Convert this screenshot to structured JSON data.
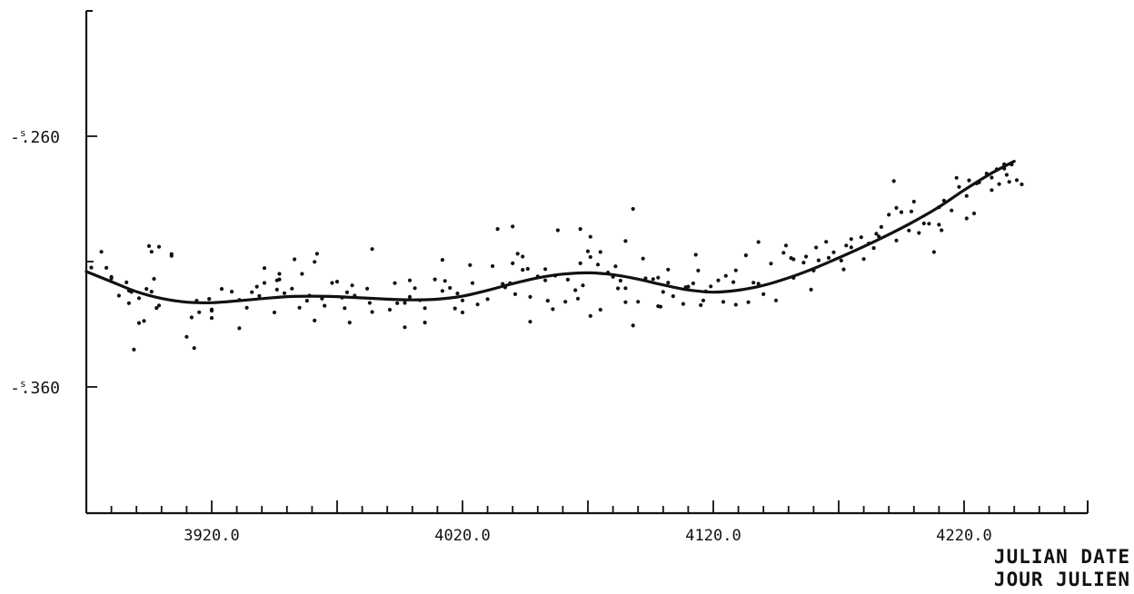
{
  "chart_data": {
    "type": "scatter",
    "title": "",
    "xlabel_lines": [
      "JULIAN DATE",
      "JOUR JULIEN"
    ],
    "ylabel": "",
    "xlim": [
      3870,
      4270
    ],
    "ylim": [
      -0.41,
      -0.21
    ],
    "x_ticks": [
      3920,
      4020,
      4120,
      4220
    ],
    "x_tick_labels": [
      "3920.0",
      "4020.0",
      "4120.0",
      "4220.0"
    ],
    "y_ticks": [
      -0.26,
      -0.36
    ],
    "y_tick_labels": [
      {
        "prefix": "-",
        "sup": "s",
        "text": ".260"
      },
      {
        "prefix": "-",
        "sup": "s",
        "text": ".360"
      }
    ],
    "x_minor_step": 10,
    "grid": false,
    "colors": {
      "points": "#111111",
      "curve": "#111111",
      "axes": "#111111"
    },
    "series": [
      {
        "kind": "points",
        "points": [
          [
            3872.0,
            -0.3124
          ],
          [
            3876.0,
            -0.3061
          ],
          [
            3878.0,
            -0.3125
          ],
          [
            3880.0,
            -0.3167
          ],
          [
            3880.0,
            -0.3161
          ],
          [
            3883.0,
            -0.3236
          ],
          [
            3887.0,
            -0.3266
          ],
          [
            3886.0,
            -0.3183
          ],
          [
            3887.0,
            -0.3216
          ],
          [
            3888.0,
            -0.3221
          ],
          [
            3891.0,
            -0.3246
          ],
          [
            3893.0,
            -0.3337
          ],
          [
            3894.0,
            -0.3209
          ],
          [
            3896.0,
            -0.322
          ],
          [
            3899.0,
            -0.3275
          ],
          [
            3897.0,
            -0.3169
          ],
          [
            3896.0,
            -0.3061
          ],
          [
            3899.0,
            -0.3041
          ],
          [
            3895.0,
            -0.3038
          ],
          [
            3904.0,
            -0.307
          ],
          [
            3904.0,
            -0.3077
          ],
          [
            3913.0,
            -0.3445
          ],
          [
            3915.0,
            -0.3302
          ],
          [
            3914.0,
            -0.3256
          ],
          [
            3919.0,
            -0.3249
          ],
          [
            3924.0,
            -0.3209
          ],
          [
            3920.0,
            -0.3291
          ],
          [
            3920.0,
            -0.3296
          ],
          [
            3928.0,
            -0.322
          ],
          [
            3931.0,
            -0.3253
          ],
          [
            3936.0,
            -0.3222
          ],
          [
            3938.0,
            -0.32
          ],
          [
            3939.0,
            -0.3237
          ],
          [
            3941.0,
            -0.3185
          ],
          [
            3941.0,
            -0.3126
          ],
          [
            3946.0,
            -0.3175
          ],
          [
            3947.0,
            -0.3149
          ],
          [
            3947.0,
            -0.3171
          ],
          [
            3952.0,
            -0.3208
          ],
          [
            3949.0,
            -0.3226
          ],
          [
            3953.0,
            -0.3091
          ],
          [
            3958.0,
            -0.3256
          ],
          [
            3959.0,
            -0.3236
          ],
          [
            3956.0,
            -0.3149
          ],
          [
            3961.0,
            -0.3101
          ],
          [
            3962.0,
            -0.3069
          ],
          [
            3964.0,
            -0.3248
          ],
          [
            3961.0,
            -0.3335
          ],
          [
            3965.0,
            -0.3276
          ],
          [
            3968.0,
            -0.3185
          ],
          [
            3973.0,
            -0.3286
          ],
          [
            3972.0,
            -0.3244
          ],
          [
            3974.0,
            -0.3223
          ],
          [
            3976.0,
            -0.3195
          ],
          [
            3977.0,
            -0.3236
          ],
          [
            3984.0,
            -0.305
          ],
          [
            3983.0,
            -0.3265
          ],
          [
            3991.0,
            -0.3292
          ],
          [
            3994.0,
            -0.3266
          ],
          [
            3997.0,
            -0.3265
          ],
          [
            3999.0,
            -0.3241
          ],
          [
            3999.0,
            -0.3175
          ],
          [
            4003.0,
            -0.3254
          ],
          [
            4005.0,
            -0.3286
          ],
          [
            4009.0,
            -0.3171
          ],
          [
            4012.0,
            -0.3093
          ],
          [
            4013.0,
            -0.3177
          ],
          [
            4012.0,
            -0.3217
          ],
          [
            4017.0,
            -0.3287
          ],
          [
            4018.0,
            -0.3227
          ],
          [
            4020.0,
            -0.3255
          ],
          [
            4024.0,
            -0.3186
          ],
          [
            4030.0,
            -0.325
          ],
          [
            4032.0,
            -0.3118
          ],
          [
            4036.0,
            -0.3189
          ],
          [
            4037.0,
            -0.3203
          ],
          [
            4039.0,
            -0.3186
          ],
          [
            4041.0,
            -0.323
          ],
          [
            4042.0,
            -0.3069
          ],
          [
            4044.0,
            -0.308
          ],
          [
            4046.0,
            -0.3129
          ],
          [
            4047.0,
            -0.3241
          ],
          [
            4050.0,
            -0.3159
          ],
          [
            4053.0,
            -0.313
          ],
          [
            4057.0,
            -0.3156
          ],
          [
            4062.0,
            -0.3172
          ],
          [
            4065.0,
            -0.3214
          ],
          [
            4066.0,
            -0.3248
          ],
          [
            4068.0,
            -0.3195
          ],
          [
            4067.0,
            -0.3107
          ],
          [
            4067.0,
            -0.297
          ],
          [
            4070.0,
            -0.3059
          ],
          [
            4071.0,
            -0.3082
          ],
          [
            4074.0,
            -0.3112
          ],
          [
            4075.0,
            -0.3062
          ],
          [
            4078.0,
            -0.3144
          ],
          [
            4080.0,
            -0.3161
          ],
          [
            4083.0,
            -0.3176
          ],
          [
            4082.0,
            -0.3207
          ],
          [
            4081.0,
            -0.3119
          ],
          [
            4085.0,
            -0.3206
          ],
          [
            4085.0,
            -0.3262
          ],
          [
            4090.0,
            -0.326
          ],
          [
            4093.0,
            -0.3167
          ],
          [
            4092.0,
            -0.3088
          ],
          [
            4096.0,
            -0.317
          ],
          [
            4098.0,
            -0.3164
          ],
          [
            4100.0,
            -0.3221
          ],
          [
            4102.0,
            -0.3184
          ],
          [
            4102.0,
            -0.3132
          ],
          [
            4104.0,
            -0.3238
          ],
          [
            4109.0,
            -0.3202
          ],
          [
            4110.0,
            -0.32
          ],
          [
            4112.0,
            -0.3187
          ],
          [
            4113.0,
            -0.3073
          ],
          [
            4114.0,
            -0.3136
          ],
          [
            4117.0,
            -0.3219
          ],
          [
            4119.0,
            -0.3199
          ],
          [
            4122.0,
            -0.3175
          ],
          [
            4125.0,
            -0.3157
          ],
          [
            4128.0,
            -0.3182
          ],
          [
            4129.0,
            -0.3135
          ],
          [
            4133.0,
            -0.3075
          ],
          [
            4136.0,
            -0.3184
          ],
          [
            4138.0,
            -0.3188
          ],
          [
            4140.0,
            -0.323
          ],
          [
            4143.0,
            -0.3108
          ],
          [
            4148.0,
            -0.3065
          ],
          [
            4151.0,
            -0.3086
          ],
          [
            4152.0,
            -0.3091
          ],
          [
            4156.0,
            -0.3104
          ],
          [
            4157.0,
            -0.308
          ],
          [
            4160.0,
            -0.3136
          ],
          [
            4162.0,
            -0.3095
          ],
          [
            4166.0,
            -0.3085
          ],
          [
            4168.0,
            -0.3063
          ],
          [
            4171.0,
            -0.3096
          ],
          [
            4173.0,
            -0.3036
          ],
          [
            4175.0,
            -0.301
          ],
          [
            4179.0,
            -0.3003
          ],
          [
            4182.0,
            -0.3028
          ],
          [
            4185.0,
            -0.2989
          ],
          [
            4187.0,
            -0.2962
          ],
          [
            4190.0,
            -0.2913
          ],
          [
            4193.0,
            -0.2886
          ],
          [
            4195.0,
            -0.2903
          ],
          [
            4199.0,
            -0.29
          ],
          [
            4200.0,
            -0.2861
          ],
          [
            4204.0,
            -0.2948
          ],
          [
            4206.0,
            -0.2949
          ],
          [
            4210.0,
            -0.2883
          ],
          [
            4212.0,
            -0.2857
          ],
          [
            4215.0,
            -0.2896
          ],
          [
            4217.0,
            -0.2766
          ],
          [
            4218.0,
            -0.2802
          ],
          [
            4221.0,
            -0.2838
          ],
          [
            4222.0,
            -0.2776
          ],
          [
            4226.0,
            -0.2784
          ],
          [
            4229.0,
            -0.2749
          ],
          [
            4231.0,
            -0.2765
          ],
          [
            4233.0,
            -0.2732
          ],
          [
            4236.0,
            -0.2729
          ],
          [
            4236.0,
            -0.2712
          ],
          [
            4238.0,
            -0.2782
          ],
          [
            4241.0,
            -0.2775
          ],
          [
            4237.0,
            -0.2754
          ],
          [
            4234.0,
            -0.2791
          ],
          [
            4236.0,
            -0.2714
          ],
          [
            4239.0,
            -0.2713
          ],
          [
            4208.0,
            -0.3062
          ],
          [
            4202.0,
            -0.2986
          ],
          [
            4192.0,
            -0.2779
          ],
          [
            4184.0,
            -0.3046
          ],
          [
            4165.0,
            -0.3021
          ],
          [
            4152.0,
            -0.3165
          ],
          [
            4134.0,
            -0.3262
          ],
          [
            4124.0,
            -0.3261
          ],
          [
            4116.0,
            -0.3255
          ],
          [
            4099.0,
            -0.328
          ],
          [
            4088.0,
            -0.3355
          ],
          [
            4088.0,
            -0.289
          ],
          [
            4056.0,
            -0.329
          ],
          [
            4047.0,
            -0.334
          ],
          [
            4054.0,
            -0.3256
          ],
          [
            4040.0,
            -0.296
          ],
          [
            4026.0,
            -0.3271
          ],
          [
            4020.0,
            -0.3303
          ],
          [
            4005.0,
            -0.3343
          ],
          [
            3997.0,
            -0.3362
          ],
          [
            3984.0,
            -0.3301
          ],
          [
            3975.0,
            -0.3343
          ],
          [
            3955.0,
            -0.3284
          ],
          [
            3945.0,
            -0.3303
          ],
          [
            3931.0,
            -0.3366
          ],
          [
            3912.0,
            -0.3323
          ],
          [
            3891.0,
            -0.3345
          ],
          [
            3889.0,
            -0.3451
          ],
          [
            3898.0,
            -0.3285
          ],
          [
            4040.0,
            -0.3107
          ],
          [
            4044.0,
            -0.3133
          ],
          [
            4053.0,
            -0.3175
          ],
          [
            4061.0,
            -0.326
          ],
          [
            4071.0,
            -0.3317
          ],
          [
            4075.0,
            -0.3292
          ],
          [
            4098.0,
            -0.3278
          ],
          [
            4108.0,
            -0.3269
          ],
          [
            4115.0,
            -0.3274
          ],
          [
            4129.0,
            -0.3272
          ],
          [
            4145.0,
            -0.3255
          ],
          [
            4159.0,
            -0.3212
          ],
          [
            4172.0,
            -0.3131
          ],
          [
            4180.0,
            -0.309
          ],
          [
            4193.0,
            -0.3016
          ],
          [
            4211.0,
            -0.2975
          ],
          [
            4221.0,
            -0.2928
          ],
          [
            3920.0,
            -0.3325
          ],
          [
            3934.0,
            -0.3284
          ],
          [
            3946.0,
            -0.3212
          ],
          [
            3970.0,
            -0.318
          ],
          [
            3982.0,
            -0.3208
          ],
          [
            3993.0,
            -0.3186
          ],
          [
            4001.0,
            -0.3206
          ],
          [
            4015.0,
            -0.3205
          ],
          [
            4023.0,
            -0.3114
          ],
          [
            4034.0,
            -0.297
          ],
          [
            4058.0,
            -0.2975
          ],
          [
            4071.0,
            -0.3001
          ],
          [
            4085.0,
            -0.3018
          ],
          [
            4138.0,
            -0.3022
          ],
          [
            4149.0,
            -0.3036
          ],
          [
            4161.0,
            -0.3044
          ],
          [
            4175.0,
            -0.3043
          ],
          [
            4186.0,
            -0.3
          ],
          [
            4198.0,
            -0.2976
          ],
          [
            4210.0,
            -0.2953
          ],
          [
            4224.0,
            -0.2908
          ],
          [
            4243.0,
            -0.2792
          ],
          [
            4225.0,
            -0.2788
          ],
          [
            4231.0,
            -0.2815
          ],
          [
            3910.0,
            -0.34
          ]
        ]
      },
      {
        "kind": "line",
        "points": [
          [
            3870,
            -0.314
          ],
          [
            3880,
            -0.318
          ],
          [
            3890,
            -0.322
          ],
          [
            3900,
            -0.3247
          ],
          [
            3910,
            -0.3262
          ],
          [
            3920,
            -0.3264
          ],
          [
            3930,
            -0.3257
          ],
          [
            3940,
            -0.3248
          ],
          [
            3950,
            -0.324
          ],
          [
            3960,
            -0.3238
          ],
          [
            3970,
            -0.324
          ],
          [
            3980,
            -0.3245
          ],
          [
            3990,
            -0.325
          ],
          [
            4000,
            -0.3253
          ],
          [
            4010,
            -0.325
          ],
          [
            4020,
            -0.3238
          ],
          [
            4030,
            -0.3215
          ],
          [
            4040,
            -0.3188
          ],
          [
            4050,
            -0.3165
          ],
          [
            4060,
            -0.315
          ],
          [
            4070,
            -0.3145
          ],
          [
            4080,
            -0.3152
          ],
          [
            4090,
            -0.317
          ],
          [
            4100,
            -0.3193
          ],
          [
            4110,
            -0.3213
          ],
          [
            4120,
            -0.3222
          ],
          [
            4130,
            -0.3214
          ],
          [
            4140,
            -0.3195
          ],
          [
            4150,
            -0.3165
          ],
          [
            4160,
            -0.3128
          ],
          [
            4170,
            -0.3085
          ],
          [
            4180,
            -0.304
          ],
          [
            4190,
            -0.2992
          ],
          [
            4200,
            -0.294
          ],
          [
            4210,
            -0.2882
          ],
          [
            4220,
            -0.2815
          ],
          [
            4230,
            -0.2753
          ],
          [
            4240,
            -0.27
          ]
        ]
      }
    ]
  }
}
